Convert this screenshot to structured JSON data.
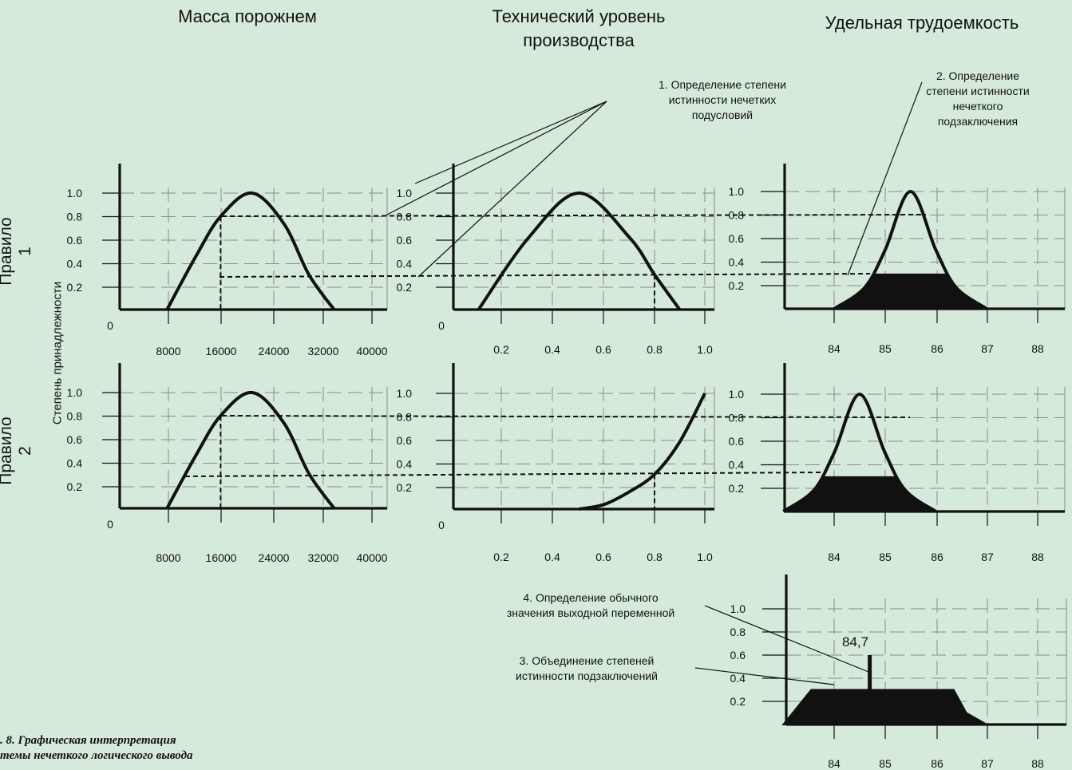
{
  "columns": {
    "mass": "Масса порожнем",
    "tech": "Технический уровень\nпроизводства",
    "labor": "Удельная трудоемкость"
  },
  "rows": {
    "rule1": "Правило 1",
    "rule2": "Правило 2"
  },
  "y_axis_label": "Степень принадлежности",
  "notes": {
    "n1": "1. Определение степени\nистинности нечетких\nподусловий",
    "n2": "2. Определение\nстепени истинности\nнечеткого\nподзаключения",
    "n3": "3. Объединение степеней\nистинности подзаключений",
    "n4": "4. Определение обычного\nзначения выходной переменной"
  },
  "result_label": "84,7",
  "caption": ". 8. Графическая интерпретация\nтемы нечеткого логического вывода",
  "colors": {
    "background": "#d6eadb",
    "curve": "#111111",
    "grid": "#8a8a8a"
  },
  "chart_data": [
    {
      "type": "line",
      "name": "rule1-mass",
      "y_ticks": [
        "0.2",
        "0.4",
        "0.6",
        "0.8",
        "1.0"
      ],
      "origin_label": "0",
      "x_ticks": [
        "8000",
        "16000",
        "24000",
        "32000",
        "40000"
      ],
      "x": [
        7500,
        12000,
        16000,
        21000,
        26000,
        30000,
        34000
      ],
      "y": [
        0,
        0.45,
        0.8,
        1.0,
        0.74,
        0.3,
        0
      ],
      "input_x": 16000,
      "membership": 0.8
    },
    {
      "type": "line",
      "name": "rule1-tech",
      "y_ticks": [
        "0.2",
        "0.4",
        "0.6",
        "0.8",
        "1.0"
      ],
      "origin_label": "0",
      "x_ticks": [
        "0.2",
        "0.4",
        "0.6",
        "0.8",
        "1.0"
      ],
      "x": [
        0.1,
        0.3,
        0.5,
        0.7,
        0.8,
        0.9
      ],
      "y": [
        0,
        0.62,
        1.0,
        0.62,
        0.3,
        0
      ],
      "input_x": 0.8,
      "membership": 0.3
    },
    {
      "type": "area",
      "name": "rule1-labor",
      "y_ticks": [
        "0.2",
        "0.4",
        "0.6",
        "0.8",
        "1.0"
      ],
      "x_ticks": [
        "84",
        "85",
        "86",
        "87",
        "88"
      ],
      "x": [
        84.0,
        84.6,
        85.0,
        85.5,
        86.0,
        86.4,
        87.0
      ],
      "y": [
        0,
        0.18,
        0.5,
        1.0,
        0.5,
        0.18,
        0
      ],
      "clip_level": 0.3
    },
    {
      "type": "line",
      "name": "rule2-mass",
      "y_ticks": [
        "0.2",
        "0.4",
        "0.6",
        "0.8",
        "1.0"
      ],
      "origin_label": "0",
      "x_ticks": [
        "8000",
        "16000",
        "24000",
        "32000",
        "40000"
      ],
      "x": [
        7500,
        12000,
        16000,
        21000,
        26000,
        30000,
        34000
      ],
      "y": [
        0,
        0.45,
        0.8,
        1.0,
        0.74,
        0.3,
        0
      ],
      "input_x": 16000,
      "membership": 0.8
    },
    {
      "type": "line",
      "name": "rule2-tech",
      "y_ticks": [
        "0.2",
        "0.4",
        "0.6",
        "0.8",
        "1.0"
      ],
      "origin_label": "0",
      "x_ticks": [
        "0.2",
        "0.4",
        "0.6",
        "0.8",
        "1.0"
      ],
      "x": [
        0.5,
        0.6,
        0.7,
        0.8,
        0.9,
        1.0
      ],
      "y": [
        0,
        0.04,
        0.15,
        0.3,
        0.58,
        1.0
      ],
      "input_x": 0.8,
      "membership": 0.3
    },
    {
      "type": "area",
      "name": "rule2-labor",
      "y_ticks": [
        "0.2",
        "0.4",
        "0.6",
        "0.8",
        "1.0"
      ],
      "x_ticks": [
        "84",
        "85",
        "86",
        "87",
        "88"
      ],
      "x": [
        83.0,
        83.6,
        84.0,
        84.5,
        85.0,
        85.4,
        86.0
      ],
      "y": [
        0,
        0.18,
        0.5,
        1.0,
        0.5,
        0.18,
        0
      ],
      "clip_level": 0.3
    },
    {
      "type": "area",
      "name": "aggregate",
      "y_ticks": [
        "0.2",
        "0.4",
        "0.6",
        "0.8",
        "1.0"
      ],
      "x_ticks": [
        "84",
        "85",
        "86",
        "87",
        "88"
      ],
      "x": [
        83.0,
        83.55,
        85.5,
        86.35,
        86.6,
        87.0
      ],
      "y": [
        0,
        0.3,
        0.3,
        0.3,
        0.1,
        0
      ],
      "result_x": 84.7,
      "result_y": 0.6
    }
  ]
}
